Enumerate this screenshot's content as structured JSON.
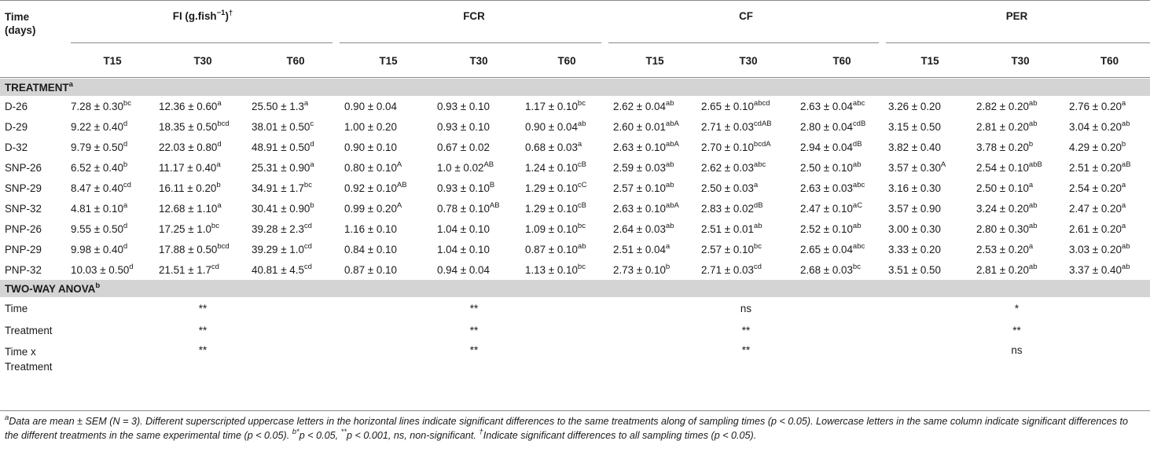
{
  "header": {
    "time_label_line1": "Time",
    "time_label_line2": "(days)",
    "groups": [
      {
        "label": "FI (g.fish",
        "sup": "−1",
        "after": ")",
        "dagger": "†"
      },
      {
        "label": "FCR",
        "sup": "",
        "after": "",
        "dagger": ""
      },
      {
        "label": "CF",
        "sup": "",
        "after": "",
        "dagger": ""
      },
      {
        "label": "PER",
        "sup": "",
        "after": "",
        "dagger": ""
      }
    ],
    "subcols": [
      "T15",
      "T30",
      "T60"
    ]
  },
  "sections": {
    "treatment_label": "TREATMENT",
    "treatment_sup": "a",
    "anova_label": "TWO-WAY ANOVA",
    "anova_sup": "b"
  },
  "rows": [
    {
      "name": "D-26",
      "cells": [
        [
          "7.28 ± 0.30",
          "bc"
        ],
        [
          "12.36 ± 0.60",
          "a"
        ],
        [
          "25.50 ± 1.3",
          "a"
        ],
        [
          "0.90 ± 0.04",
          ""
        ],
        [
          "0.93 ± 0.10",
          ""
        ],
        [
          "1.17 ± 0.10",
          "bc"
        ],
        [
          "2.62 ± 0.04",
          "ab"
        ],
        [
          "2.65 ± 0.10",
          "abcd"
        ],
        [
          "2.63 ± 0.04",
          "abc"
        ],
        [
          "3.26 ± 0.20",
          ""
        ],
        [
          "2.82 ± 0.20",
          "ab"
        ],
        [
          "2.76 ± 0.20",
          "a"
        ]
      ]
    },
    {
      "name": "D-29",
      "cells": [
        [
          "9.22 ± 0.40",
          "d"
        ],
        [
          "18.35 ± 0.50",
          "bcd"
        ],
        [
          "38.01 ± 0.50",
          "c"
        ],
        [
          "1.00 ± 0.20",
          ""
        ],
        [
          "0.93 ± 0.10",
          ""
        ],
        [
          "0.90 ± 0.04",
          "ab"
        ],
        [
          "2.60 ± 0.01",
          "abA"
        ],
        [
          "2.71 ± 0.03",
          "cdAB"
        ],
        [
          "2.80 ± 0.04",
          "cdB"
        ],
        [
          "3.15 ± 0.50",
          ""
        ],
        [
          "2.81 ± 0.20",
          "ab"
        ],
        [
          "3.04 ± 0.20",
          "ab"
        ]
      ]
    },
    {
      "name": "D-32",
      "cells": [
        [
          "9.79 ± 0.50",
          "d"
        ],
        [
          "22.03 ± 0.80",
          "d"
        ],
        [
          "48.91 ± 0.50",
          "d"
        ],
        [
          "0.90 ± 0.10",
          ""
        ],
        [
          "0.67 ± 0.02",
          ""
        ],
        [
          "0.68 ± 0.03",
          "a"
        ],
        [
          "2.63 ± 0.10",
          "abA"
        ],
        [
          "2.70 ± 0.10",
          "bcdA"
        ],
        [
          "2.94 ± 0.04",
          "dB"
        ],
        [
          "3.82 ± 0.40",
          ""
        ],
        [
          "3.78 ± 0.20",
          "b"
        ],
        [
          "4.29 ± 0.20",
          "b"
        ]
      ]
    },
    {
      "name": "SNP-26",
      "cells": [
        [
          "6.52 ± 0.40",
          "b"
        ],
        [
          "11.17 ± 0.40",
          "a"
        ],
        [
          "25.31 ± 0.90",
          "a"
        ],
        [
          "0.80 ± 0.10",
          "A"
        ],
        [
          "1.0 ± 0.02",
          "AB"
        ],
        [
          "1.24 ± 0.10",
          "cB"
        ],
        [
          "2.59 ± 0.03",
          "ab"
        ],
        [
          "2.62 ± 0.03",
          "abc"
        ],
        [
          "2.50 ± 0.10",
          "ab"
        ],
        [
          "3.57 ± 0.30",
          "A"
        ],
        [
          "2.54 ± 0.10",
          "abB"
        ],
        [
          "2.51 ± 0.20",
          "aB"
        ]
      ]
    },
    {
      "name": "SNP-29",
      "cells": [
        [
          "8.47 ± 0.40",
          "cd"
        ],
        [
          "16.11 ± 0.20",
          "b"
        ],
        [
          "34.91 ± 1.7",
          "bc"
        ],
        [
          "0.92 ± 0.10",
          "AB"
        ],
        [
          "0.93 ± 0.10",
          "B"
        ],
        [
          "1.29 ± 0.10",
          "cC"
        ],
        [
          "2.57 ± 0.10",
          "ab"
        ],
        [
          "2.50 ± 0.03",
          "a"
        ],
        [
          "2.63 ± 0.03",
          "abc"
        ],
        [
          "3.16 ± 0.30",
          ""
        ],
        [
          "2.50 ± 0.10",
          "a"
        ],
        [
          "2.54 ± 0.20",
          "a"
        ]
      ]
    },
    {
      "name": "SNP-32",
      "cells": [
        [
          "4.81 ± 0.10",
          "a"
        ],
        [
          "12.68 ± 1.10",
          "a"
        ],
        [
          "30.41 ± 0.90",
          "b"
        ],
        [
          "0.99 ± 0.20",
          "A"
        ],
        [
          "0.78 ± 0.10",
          "AB"
        ],
        [
          "1.29 ± 0.10",
          "cB"
        ],
        [
          "2.63 ± 0.10",
          "abA"
        ],
        [
          "2.83 ± 0.02",
          "dB"
        ],
        [
          "2.47 ± 0.10",
          "aC"
        ],
        [
          "3.57 ± 0.90",
          ""
        ],
        [
          "3.24 ± 0.20",
          "ab"
        ],
        [
          "2.47 ± 0.20",
          "a"
        ]
      ]
    },
    {
      "name": "PNP-26",
      "cells": [
        [
          "9.55 ± 0.50",
          "d"
        ],
        [
          "17.25 ± 1.0",
          "bc"
        ],
        [
          "39.28 ± 2.3",
          "cd"
        ],
        [
          "1.16 ± 0.10",
          ""
        ],
        [
          "1.04 ± 0.10",
          ""
        ],
        [
          "1.09 ± 0.10",
          "bc"
        ],
        [
          "2.64 ± 0.03",
          "ab"
        ],
        [
          "2.51 ± 0.01",
          "ab"
        ],
        [
          "2.52 ± 0.10",
          "ab"
        ],
        [
          "3.00 ± 0.30",
          ""
        ],
        [
          "2.80 ± 0.30",
          "ab"
        ],
        [
          "2.61 ± 0.20",
          "a"
        ]
      ]
    },
    {
      "name": "PNP-29",
      "cells": [
        [
          "9.98 ± 0.40",
          "d"
        ],
        [
          "17.88 ± 0.50",
          "bcd"
        ],
        [
          "39.29 ± 1.0",
          "cd"
        ],
        [
          "0.84 ± 0.10",
          ""
        ],
        [
          "1.04 ± 0.10",
          ""
        ],
        [
          "0.87 ± 0.10",
          "ab"
        ],
        [
          "2.51 ± 0.04",
          "a"
        ],
        [
          "2.57 ± 0.10",
          "bc"
        ],
        [
          "2.65 ± 0.04",
          "abc"
        ],
        [
          "3.33 ± 0.20",
          ""
        ],
        [
          "2.53 ± 0.20",
          "a"
        ],
        [
          "3.03 ± 0.20",
          "ab"
        ]
      ]
    },
    {
      "name": "PNP-32",
      "cells": [
        [
          "10.03 ± 0.50",
          "d"
        ],
        [
          "21.51 ± 1.7",
          "cd"
        ],
        [
          "40.81 ± 4.5",
          "cd"
        ],
        [
          "0.87 ± 0.10",
          ""
        ],
        [
          "0.94 ± 0.04",
          ""
        ],
        [
          "1.13 ± 0.10",
          "bc"
        ],
        [
          "2.73 ± 0.10",
          "b"
        ],
        [
          "2.71 ± 0.03",
          "cd"
        ],
        [
          "2.68 ± 0.03",
          "bc"
        ],
        [
          "3.51 ± 0.50",
          ""
        ],
        [
          "2.81 ± 0.20",
          "ab"
        ],
        [
          "3.37 ± 0.40",
          "ab"
        ]
      ]
    }
  ],
  "anova": [
    {
      "name_line1": "Time",
      "name_line2": "",
      "values": [
        "**",
        "**",
        "ns",
        "*"
      ]
    },
    {
      "name_line1": "Treatment",
      "name_line2": "",
      "values": [
        "**",
        "**",
        "**",
        "**"
      ]
    },
    {
      "name_line1": "Time x",
      "name_line2": "Treatment",
      "values": [
        "**",
        "**",
        "**",
        "ns"
      ]
    }
  ],
  "footnote": {
    "a_mark": "a",
    "a_text": "Data are mean ± SEM (N = 3). Different superscripted uppercase letters in the horizontal lines indicate significant differences to the same treatments along of sampling times (p < 0.05). Lowercase letters in the same column indicate significant differences to the different treatments in the same experimental time (p < 0.05). ",
    "b_mark": "b",
    "b_star": "*",
    "b_text1": "p < 0.05, ",
    "b_star2": "**",
    "b_text2": "p < 0.001, ns, non-significant. ",
    "dagger_mark": "†",
    "dagger_text": "Indicate significant differences to all sampling times (p < 0.05)."
  }
}
